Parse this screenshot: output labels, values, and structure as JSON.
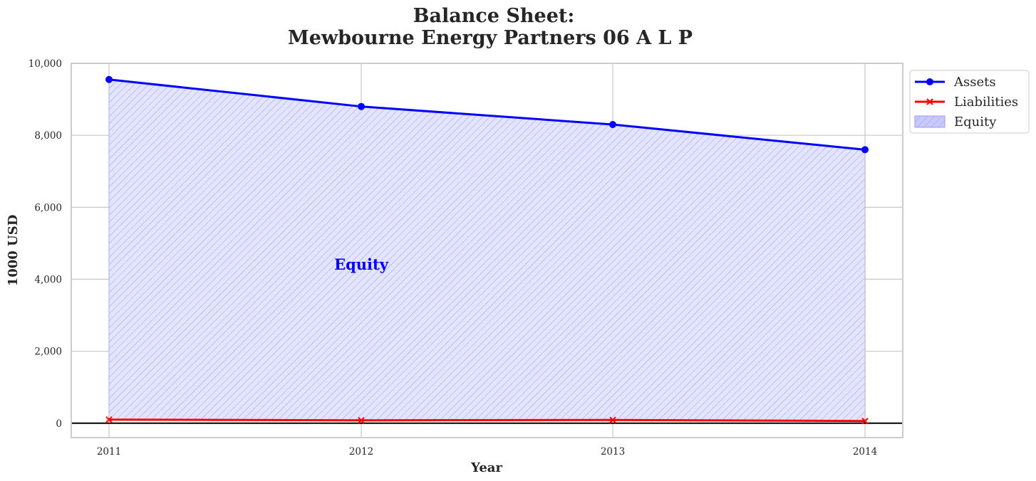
{
  "chart_data": {
    "type": "area",
    "title_line1": "Balance Sheet:",
    "title_line2": "Mewbourne Energy Partners 06 A L P",
    "xlabel": "Year",
    "ylabel": "1000 USD",
    "x": [
      "2011",
      "2012",
      "2013",
      "2014"
    ],
    "ylim": [
      -400,
      10000
    ],
    "yticks": [
      0,
      2000,
      4000,
      6000,
      8000,
      10000
    ],
    "ytick_labels": [
      "0",
      "2,000",
      "4,000",
      "6,000",
      "8,000",
      "10,000"
    ],
    "grid": true,
    "legend_placement": "outside top-right",
    "series": [
      {
        "name": "Assets",
        "values": [
          9550,
          8800,
          8300,
          7600
        ],
        "color": "#0000ff",
        "marker": "circle"
      },
      {
        "name": "Liabilities",
        "values": [
          100,
          80,
          90,
          60
        ],
        "color": "#ff0000",
        "marker": "x"
      }
    ],
    "fill": {
      "name": "Equity",
      "between": [
        "Liabilities",
        "Assets"
      ],
      "color": "#0000ff",
      "hatch": "diagonal"
    },
    "annotation": {
      "text": "Equity",
      "x": 2012,
      "y": 4400,
      "color": "#0000ff"
    }
  }
}
